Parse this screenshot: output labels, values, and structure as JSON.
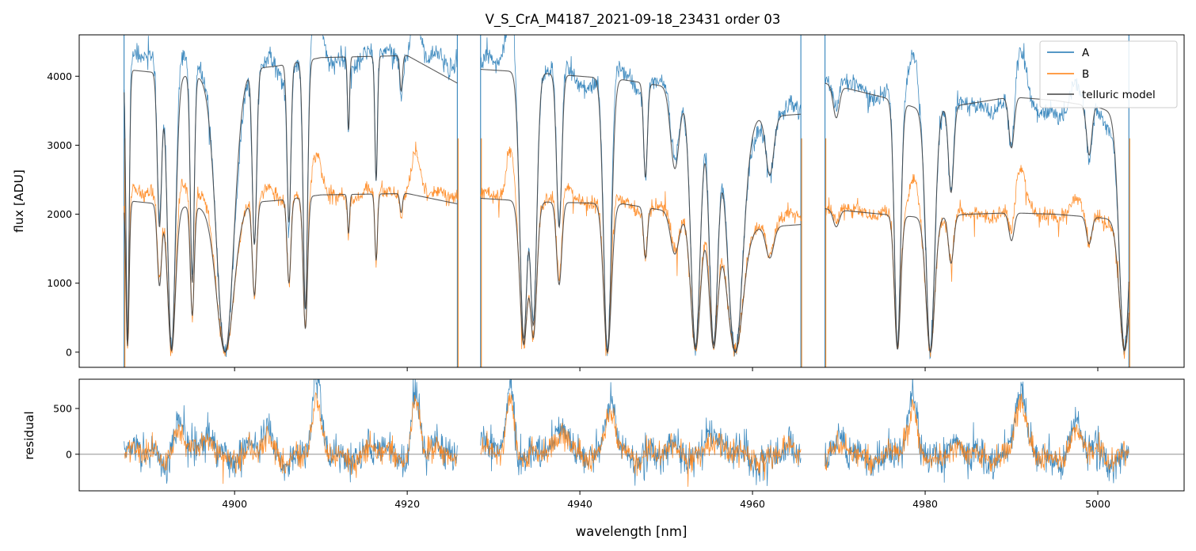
{
  "title": "V_S_CrA_M4187_2021-09-18_23431  order 03",
  "colors": {
    "A": "#1f77b4",
    "B": "#ff7f0e",
    "telluric": "#404040",
    "zero_line": "#808080"
  },
  "chart_data": [
    {
      "type": "line",
      "panel": "top",
      "ylabel": "flux [ADU]",
      "xlim": [
        4882,
        5010
      ],
      "ylim": [
        -220,
        4600
      ],
      "yticks": [
        0,
        1000,
        2000,
        3000,
        4000
      ],
      "ytick_labels": [
        "0",
        "1000",
        "2000",
        "3000",
        "4000"
      ],
      "legend": {
        "placement": "top-right",
        "entries": [
          "A",
          "B",
          "telluric model"
        ]
      },
      "segments": [
        [
          4887.2,
          4925.8
        ],
        [
          4928.5,
          4965.6
        ],
        [
          4968.4,
          5003.6
        ]
      ],
      "continuum": {
        "A": [
          [
            4887.2,
            4150
          ],
          [
            4890,
            4280
          ],
          [
            4895,
            4000
          ],
          [
            4900,
            3850
          ],
          [
            4905,
            4050
          ],
          [
            4910,
            4250
          ],
          [
            4915,
            4250
          ],
          [
            4920,
            4300
          ],
          [
            4925.8,
            4150
          ],
          [
            4928.5,
            4150
          ],
          [
            4932,
            4220
          ],
          [
            4935,
            4000
          ],
          [
            4940,
            3900
          ],
          [
            4944,
            4020
          ],
          [
            4950,
            3900
          ],
          [
            4955,
            3600
          ],
          [
            4960,
            3350
          ],
          [
            4965.6,
            3500
          ],
          [
            4968.4,
            3950
          ],
          [
            4975,
            3750
          ],
          [
            4980,
            3550
          ],
          [
            4985,
            3550
          ],
          [
            4990,
            3600
          ],
          [
            4995,
            3520
          ],
          [
            5000,
            3450
          ],
          [
            5003.6,
            3300
          ]
        ],
        "B": [
          [
            4887.2,
            2300
          ],
          [
            4890,
            2300
          ],
          [
            4895,
            2250
          ],
          [
            4900,
            2120
          ],
          [
            4905,
            2230
          ],
          [
            4910,
            2300
          ],
          [
            4915,
            2280
          ],
          [
            4920,
            2300
          ],
          [
            4925.8,
            2250
          ],
          [
            4928.5,
            2250
          ],
          [
            4932,
            2250
          ],
          [
            4935,
            2180
          ],
          [
            4940,
            2200
          ],
          [
            4945,
            2150
          ],
          [
            4950,
            2100
          ],
          [
            4955,
            1950
          ],
          [
            4960,
            1880
          ],
          [
            4965.6,
            1950
          ],
          [
            4968.4,
            2100
          ],
          [
            4975,
            2020
          ],
          [
            4980,
            1950
          ],
          [
            4985,
            1980
          ],
          [
            4990,
            2050
          ],
          [
            4995,
            2000
          ],
          [
            5000,
            1950
          ],
          [
            5003.6,
            1900
          ]
        ],
        "telluric_A": [
          [
            4887.2,
            4100
          ],
          [
            4895,
            4000
          ],
          [
            4905,
            4150
          ],
          [
            4910,
            4270
          ],
          [
            4920,
            4300
          ],
          [
            4925.8,
            3900
          ],
          [
            4928.5,
            4100
          ],
          [
            4935,
            4050
          ],
          [
            4945,
            3950
          ],
          [
            4950,
            3850
          ],
          [
            4955,
            3600
          ],
          [
            4960,
            3400
          ],
          [
            4965.6,
            3450
          ],
          [
            4968.4,
            3900
          ],
          [
            4975,
            3700
          ],
          [
            4980,
            3500
          ],
          [
            4985,
            3600
          ],
          [
            4990,
            3700
          ],
          [
            4995,
            3650
          ],
          [
            5000,
            3550
          ],
          [
            5003.6,
            3400
          ]
        ],
        "telluric_B": [
          [
            4887.2,
            2200
          ],
          [
            4895,
            2100
          ],
          [
            4905,
            2200
          ],
          [
            4910,
            2280
          ],
          [
            4920,
            2300
          ],
          [
            4925.8,
            2150
          ],
          [
            4928.5,
            2230
          ],
          [
            4935,
            2180
          ],
          [
            4945,
            2150
          ],
          [
            4950,
            2050
          ],
          [
            4955,
            1950
          ],
          [
            4960,
            1800
          ],
          [
            4965.6,
            1850
          ],
          [
            4968.4,
            2080
          ],
          [
            4975,
            2000
          ],
          [
            4980,
            1950
          ],
          [
            4985,
            2000
          ],
          [
            4990,
            2020
          ],
          [
            4995,
            2000
          ],
          [
            5000,
            1950
          ],
          [
            5003.6,
            1900
          ]
        ]
      },
      "absorption_lines": [
        {
          "x": 4887.6,
          "depth": 0.96,
          "width": 0.18
        },
        {
          "x": 4891.3,
          "depth": 0.55,
          "width": 0.25
        },
        {
          "x": 4892.7,
          "depth": 0.99,
          "width": 0.45
        },
        {
          "x": 4895.1,
          "depth": 0.75,
          "width": 0.22
        },
        {
          "x": 4898.9,
          "depth": 1.0,
          "width": 1.0
        },
        {
          "x": 4902.3,
          "depth": 0.62,
          "width": 0.25
        },
        {
          "x": 4906.3,
          "depth": 0.55,
          "width": 0.22
        },
        {
          "x": 4908.2,
          "depth": 0.85,
          "width": 0.25
        },
        {
          "x": 4913.2,
          "depth": 0.25,
          "width": 0.12
        },
        {
          "x": 4916.4,
          "depth": 0.42,
          "width": 0.15
        },
        {
          "x": 4919.3,
          "depth": 0.12,
          "width": 0.15
        },
        {
          "x": 4933.5,
          "depth": 0.95,
          "width": 0.45
        },
        {
          "x": 4934.6,
          "depth": 0.9,
          "width": 0.4
        },
        {
          "x": 4937.6,
          "depth": 0.55,
          "width": 0.3
        },
        {
          "x": 4943.2,
          "depth": 1.0,
          "width": 0.45
        },
        {
          "x": 4947.6,
          "depth": 0.35,
          "width": 0.22
        },
        {
          "x": 4951.0,
          "depth": 0.3,
          "width": 0.5
        },
        {
          "x": 4953.4,
          "depth": 0.98,
          "width": 0.55
        },
        {
          "x": 4955.5,
          "depth": 0.97,
          "width": 0.5
        },
        {
          "x": 4958.0,
          "depth": 1.0,
          "width": 0.9
        },
        {
          "x": 4962.0,
          "depth": 0.25,
          "width": 0.45
        },
        {
          "x": 4969.7,
          "depth": 0.12,
          "width": 0.35
        },
        {
          "x": 4976.8,
          "depth": 0.98,
          "width": 0.35
        },
        {
          "x": 4980.6,
          "depth": 1.0,
          "width": 0.5
        },
        {
          "x": 4983.0,
          "depth": 0.35,
          "width": 0.3
        },
        {
          "x": 4990.0,
          "depth": 0.2,
          "width": 0.3
        },
        {
          "x": 4999.0,
          "depth": 0.2,
          "width": 0.3
        },
        {
          "x": 5003.1,
          "depth": 0.99,
          "width": 0.6
        }
      ],
      "emission_peaks": [
        {
          "x": 4893.6,
          "A": 350,
          "B": 250,
          "width": 0.7
        },
        {
          "x": 4897.2,
          "A": 250,
          "B": 150,
          "width": 0.6
        },
        {
          "x": 4903.8,
          "A": 200,
          "B": 150,
          "width": 0.7
        },
        {
          "x": 4909.5,
          "A": 800,
          "B": 550,
          "width": 0.5
        },
        {
          "x": 4921.0,
          "A": 800,
          "B": 650,
          "width": 0.5
        },
        {
          "x": 4932.0,
          "A": 900,
          "B": 700,
          "width": 0.45
        },
        {
          "x": 4938.3,
          "A": 350,
          "B": 250,
          "width": 0.7
        },
        {
          "x": 4943.6,
          "A": 650,
          "B": 500,
          "width": 0.5
        },
        {
          "x": 4955.0,
          "A": 350,
          "B": 250,
          "width": 0.6
        },
        {
          "x": 4978.7,
          "A": 700,
          "B": 550,
          "width": 0.5
        },
        {
          "x": 4991.0,
          "A": 700,
          "B": 550,
          "width": 0.6
        },
        {
          "x": 4997.5,
          "A": 300,
          "B": 200,
          "width": 0.6
        }
      ],
      "series": [
        {
          "name": "A"
        },
        {
          "name": "B"
        },
        {
          "name": "telluric model"
        }
      ]
    },
    {
      "type": "line",
      "panel": "bottom",
      "xlabel": "wavelength [nm]",
      "ylabel": "residual",
      "xlim": [
        4882,
        5010
      ],
      "ylim": [
        -400,
        820
      ],
      "xticks": [
        4900,
        4920,
        4940,
        4960,
        4980,
        5000
      ],
      "xtick_labels": [
        "4900",
        "4920",
        "4940",
        "4960",
        "4980",
        "5000"
      ],
      "yticks": [
        0,
        500
      ],
      "ytick_labels": [
        "0",
        "500"
      ],
      "reference_line": 0,
      "series": [
        {
          "name": "A"
        },
        {
          "name": "B"
        }
      ]
    }
  ]
}
